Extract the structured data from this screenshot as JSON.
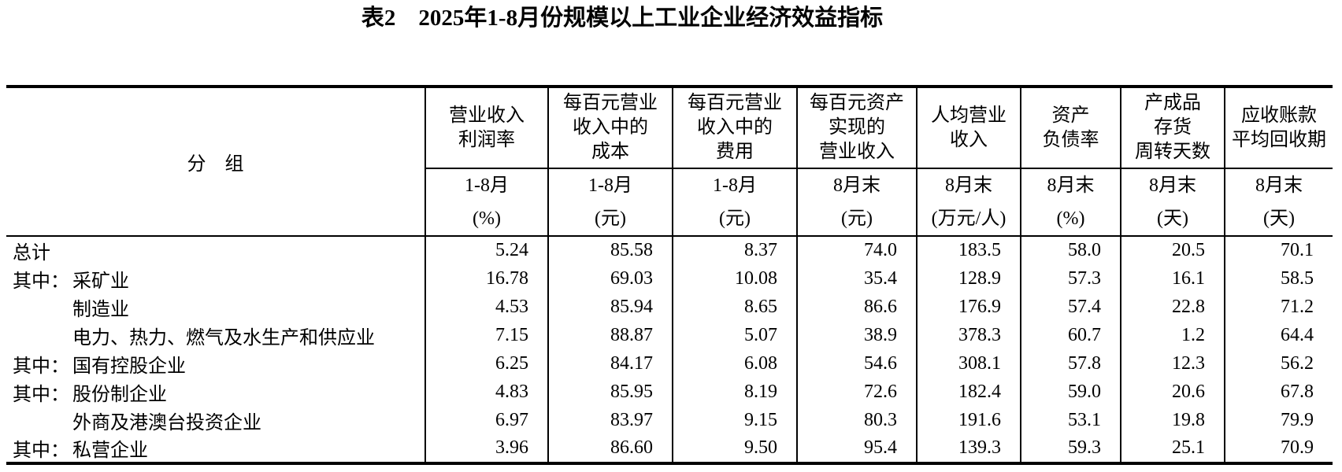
{
  "title": "表2　2025年1-8月份规模以上工业企业经济效益指标",
  "colors": {
    "text": "#000000",
    "background": "#ffffff",
    "border": "#000000"
  },
  "table": {
    "group_header": "分　组",
    "columns": [
      {
        "title": "营业收入\n利润率",
        "period": "1-8月",
        "unit": "(%)"
      },
      {
        "title": "每百元营业\n收入中的\n成本",
        "period": "1-8月",
        "unit": "(元)"
      },
      {
        "title": "每百元营业\n收入中的\n费用",
        "period": "1-8月",
        "unit": "(元)"
      },
      {
        "title": "每百元资产\n实现的\n营业收入",
        "period": "8月末",
        "unit": "(元)"
      },
      {
        "title": "人均营业\n收入",
        "period": "8月末",
        "unit": "(万元/人)"
      },
      {
        "title": "资产\n负债率",
        "period": "8月末",
        "unit": "(%)"
      },
      {
        "title": "产成品\n存货\n周转天数",
        "period": "8月末",
        "unit": "(天)"
      },
      {
        "title": "应收账款\n平均回收期",
        "period": "8月末",
        "unit": "(天)"
      }
    ],
    "rows": [
      {
        "prefix": "",
        "indent": false,
        "name": "总计",
        "values": [
          "5.24",
          "85.58",
          "8.37",
          "74.0",
          "183.5",
          "58.0",
          "20.5",
          "70.1"
        ]
      },
      {
        "prefix": "其中：",
        "indent": true,
        "name": "采矿业",
        "values": [
          "16.78",
          "69.03",
          "10.08",
          "35.4",
          "128.9",
          "57.3",
          "16.1",
          "58.5"
        ]
      },
      {
        "prefix": "",
        "indent": true,
        "name": "制造业",
        "values": [
          "4.53",
          "85.94",
          "8.65",
          "86.6",
          "176.9",
          "57.4",
          "22.8",
          "71.2"
        ]
      },
      {
        "prefix": "",
        "indent": true,
        "name": "电力、热力、燃气及水生产和供应业",
        "values": [
          "7.15",
          "88.87",
          "5.07",
          "38.9",
          "378.3",
          "60.7",
          "1.2",
          "64.4"
        ]
      },
      {
        "prefix": "其中：",
        "indent": true,
        "name": "国有控股企业",
        "values": [
          "6.25",
          "84.17",
          "6.08",
          "54.6",
          "308.1",
          "57.8",
          "12.3",
          "56.2"
        ]
      },
      {
        "prefix": "其中：",
        "indent": true,
        "name": "股份制企业",
        "values": [
          "4.83",
          "85.95",
          "8.19",
          "72.6",
          "182.4",
          "59.0",
          "20.6",
          "67.8"
        ]
      },
      {
        "prefix": "",
        "indent": true,
        "name": "外商及港澳台投资企业",
        "values": [
          "6.97",
          "83.97",
          "9.15",
          "80.3",
          "191.6",
          "53.1",
          "19.8",
          "79.9"
        ]
      },
      {
        "prefix": "其中：",
        "indent": true,
        "name": "私营企业",
        "values": [
          "3.96",
          "86.60",
          "9.50",
          "95.4",
          "139.3",
          "59.3",
          "25.1",
          "70.9"
        ]
      }
    ]
  }
}
